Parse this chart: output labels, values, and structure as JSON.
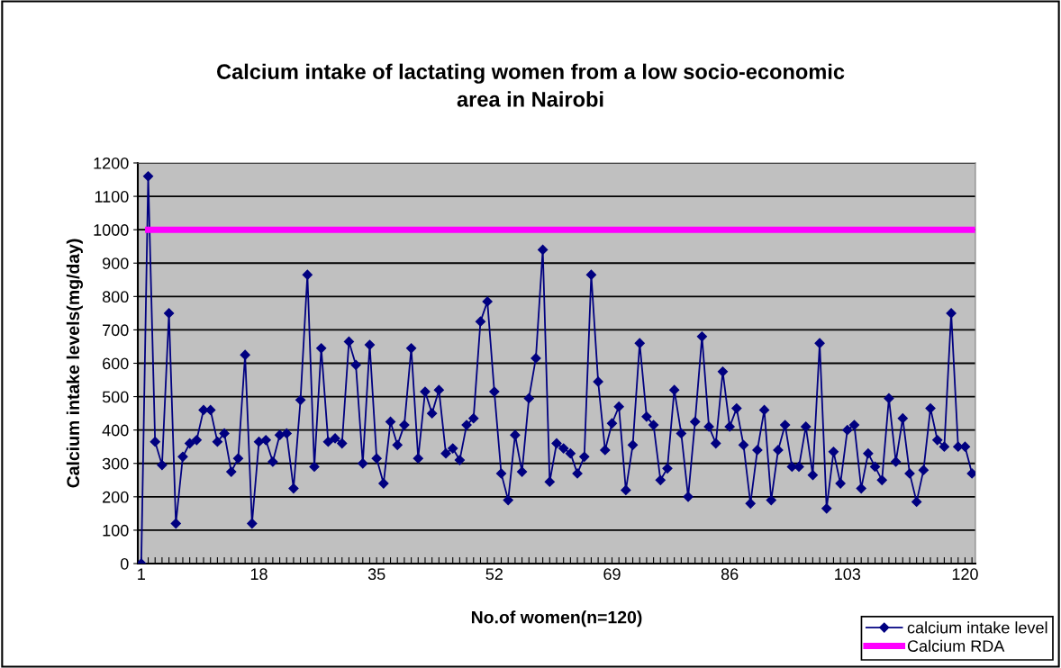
{
  "chart_data": {
    "type": "line",
    "title": "Calcium intake of lactating women from a low socio-economic\narea in Nairobi",
    "xlabel": "No.of women(n=120)",
    "ylabel": "Calcium intake levels(mg/day)",
    "categories": [
      "1",
      null,
      null,
      null,
      null,
      null,
      null,
      null,
      null,
      null,
      null,
      null,
      null,
      null,
      null,
      null,
      null,
      "18",
      null,
      null,
      null,
      null,
      null,
      null,
      null,
      null,
      null,
      null,
      null,
      null,
      null,
      null,
      null,
      null,
      "35",
      null,
      null,
      null,
      null,
      null,
      null,
      null,
      null,
      null,
      null,
      null,
      null,
      null,
      null,
      null,
      null,
      "52",
      null,
      null,
      null,
      null,
      null,
      null,
      null,
      null,
      null,
      null,
      null,
      null,
      null,
      null,
      null,
      null,
      "69",
      null,
      null,
      null,
      null,
      null,
      null,
      null,
      null,
      null,
      null,
      null,
      null,
      null,
      null,
      null,
      null,
      "86",
      null,
      null,
      null,
      null,
      null,
      null,
      null,
      null,
      null,
      null,
      null,
      null,
      null,
      null,
      null,
      null,
      "103",
      null,
      null,
      null,
      null,
      null,
      null,
      null,
      null,
      null,
      null,
      null,
      null,
      null,
      null,
      null,
      null,
      "120",
      null
    ],
    "series": [
      {
        "name": "calcium intake level",
        "color": "#000080",
        "marker": "diamond",
        "values": [
          0,
          1160,
          365,
          295,
          750,
          120,
          320,
          360,
          370,
          460,
          460,
          365,
          390,
          275,
          315,
          625,
          120,
          365,
          370,
          305,
          385,
          390,
          225,
          490,
          865,
          290,
          645,
          365,
          375,
          360,
          665,
          595,
          300,
          655,
          315,
          240,
          425,
          355,
          415,
          645,
          315,
          515,
          450,
          520,
          330,
          345,
          310,
          415,
          435,
          725,
          785,
          515,
          270,
          190,
          385,
          275,
          495,
          615,
          940,
          245,
          360,
          345,
          330,
          270,
          320,
          865,
          545,
          340,
          420,
          470,
          220,
          355,
          660,
          440,
          415,
          250,
          285,
          520,
          390,
          200,
          425,
          680,
          410,
          360,
          575,
          410,
          465,
          355,
          180,
          340,
          460,
          190,
          340,
          415,
          290,
          290,
          410,
          265,
          660,
          165,
          335,
          240,
          400,
          415,
          225,
          330,
          290,
          250,
          495,
          305,
          435,
          270,
          185,
          280,
          465,
          370,
          350,
          750,
          350,
          350,
          270
        ]
      },
      {
        "name": "Calcium RDA",
        "color": "#ff00ff",
        "marker": "square",
        "values": [
          null,
          1000,
          1000,
          1000,
          1000,
          1000,
          1000,
          1000,
          1000,
          1000,
          1000,
          1000,
          1000,
          1000,
          1000,
          1000,
          1000,
          1000,
          1000,
          1000,
          1000,
          1000,
          1000,
          1000,
          1000,
          1000,
          1000,
          1000,
          1000,
          1000,
          1000,
          1000,
          1000,
          1000,
          1000,
          1000,
          1000,
          1000,
          1000,
          1000,
          1000,
          1000,
          1000,
          1000,
          1000,
          1000,
          1000,
          1000,
          1000,
          1000,
          1000,
          1000,
          1000,
          1000,
          1000,
          1000,
          1000,
          1000,
          1000,
          1000,
          1000,
          1000,
          1000,
          1000,
          1000,
          1000,
          1000,
          1000,
          1000,
          1000,
          1000,
          1000,
          1000,
          1000,
          1000,
          1000,
          1000,
          1000,
          1000,
          1000,
          1000,
          1000,
          1000,
          1000,
          1000,
          1000,
          1000,
          1000,
          1000,
          1000,
          1000,
          1000,
          1000,
          1000,
          1000,
          1000,
          1000,
          1000,
          1000,
          1000,
          1000,
          1000,
          1000,
          1000,
          1000,
          1000,
          1000,
          1000,
          1000,
          1000,
          1000,
          1000,
          1000,
          1000,
          1000,
          1000,
          1000,
          1000,
          1000,
          1000,
          1000
        ]
      }
    ],
    "ylim": [
      0,
      1200
    ],
    "yticks": [
      0,
      100,
      200,
      300,
      400,
      500,
      600,
      700,
      800,
      900,
      1000,
      1100,
      1200
    ],
    "grid": "y",
    "legend": "bottom right"
  }
}
